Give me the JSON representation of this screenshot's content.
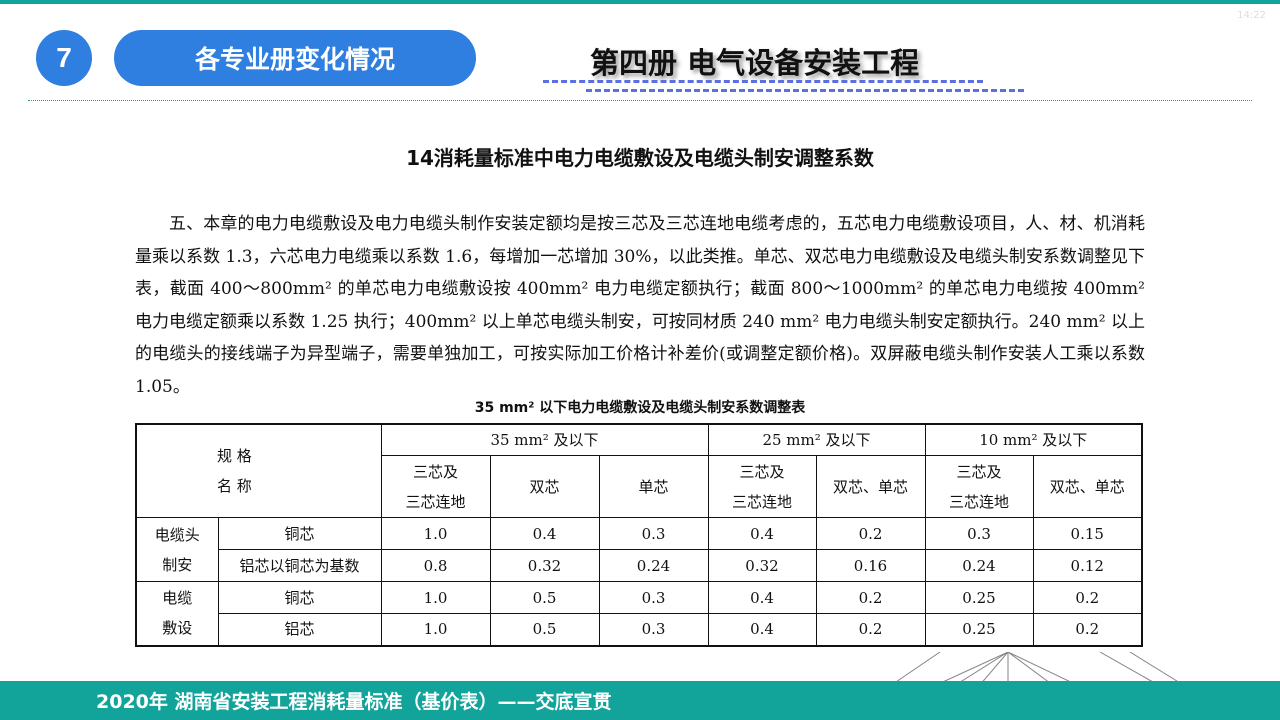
{
  "time": "14:22",
  "section_number": "7",
  "section_title": "各专业册变化情况",
  "volume_title": "第四册  电气设备安装工程",
  "heading": "14消耗量标准中电力电缆敷设及电缆头制安调整系数",
  "paragraph": "五、本章的电力电缆敷设及电力电缆头制作安装定额均是按三芯及三芯连地电缆考虑的，五芯电力电缆敷设项目，人、材、机消耗量乘以系数 1.3，六芯电力电缆乘以系数 1.6，每增加一芯增加 30%，以此类推。单芯、双芯电力电缆敷设及电缆头制安系数调整见下表，截面 400～800mm² 的单芯电力电缆敷设按 400mm² 电力电缆定额执行；截面 800～1000mm² 的单芯电力电缆按 400mm² 电力电缆定额乘以系数 1.25 执行；400mm² 以上单芯电缆头制安，可按同材质 240 mm² 电力电缆头制安定额执行。240 mm² 以上的电缆头的接线端子为异型端子，需要单独加工，可按实际加工价格计补差价(或调整定额价格)。双屏蔽电缆头制作安装人工乘以系数 1.05。",
  "table": {
    "caption": "35 mm² 以下电力电缆敷设及电缆头制安系数调整表",
    "corner": "规 格\n名 称",
    "groups": [
      "35 mm² 及以下",
      "25 mm² 及以下",
      "10 mm² 及以下"
    ],
    "subheaders": [
      "三芯及\n三芯连地",
      "双芯",
      "单芯",
      "三芯及\n三芯连地",
      "双芯、单芯",
      "三芯及\n三芯连地",
      "双芯、单芯"
    ],
    "sections": [
      {
        "name": "电缆头\n制安",
        "rows": [
          {
            "label": "铜芯",
            "values": [
              "1.0",
              "0.4",
              "0.3",
              "0.4",
              "0.2",
              "0.3",
              "0.15"
            ]
          },
          {
            "label": "铝芯以铜芯为基数",
            "values": [
              "0.8",
              "0.32",
              "0.24",
              "0.32",
              "0.16",
              "0.24",
              "0.12"
            ]
          }
        ]
      },
      {
        "name": "电缆\n敷设",
        "rows": [
          {
            "label": "铜芯",
            "values": [
              "1.0",
              "0.5",
              "0.3",
              "0.4",
              "0.2",
              "0.25",
              "0.2"
            ]
          },
          {
            "label": "铝芯",
            "values": [
              "1.0",
              "0.5",
              "0.3",
              "0.4",
              "0.2",
              "0.25",
              "0.2"
            ]
          }
        ]
      }
    ]
  },
  "footer": "2020年 湖南省安装工程消耗量标准（基价表）——交底宣贯",
  "colors": {
    "accent_blue": "#2f7fe0",
    "teal": "#12a39a"
  }
}
